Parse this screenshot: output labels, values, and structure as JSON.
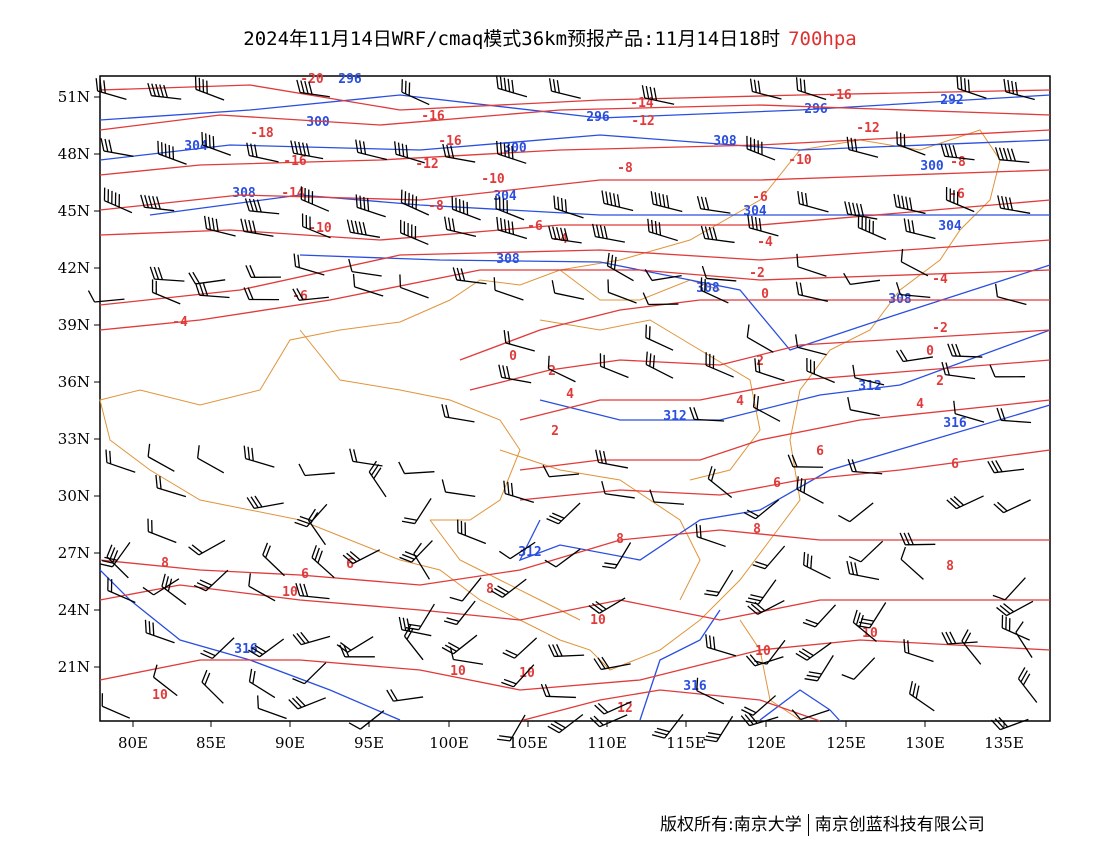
{
  "header": {
    "title": "2024年11月14日WRF/cmaq模式36km预报产品:11月14日18时",
    "level": "700hpa"
  },
  "axes": {
    "x_ticks": [
      "80E",
      "85E",
      "90E",
      "95E",
      "100E",
      "105E",
      "110E",
      "115E",
      "120E",
      "125E",
      "130E",
      "135E"
    ],
    "y_ticks": [
      "51N",
      "48N",
      "45N",
      "42N",
      "39N",
      "36N",
      "33N",
      "30N",
      "27N",
      "24N",
      "21N"
    ]
  },
  "footer": {
    "left": "版权所有:南京大学",
    "right": "南京创蓝科技有限公司"
  },
  "colors": {
    "height_contour": "#2a4fe0",
    "temperature_contour": "#e03a3a",
    "boundary": "#e0943a",
    "wind_barb": "#000000"
  },
  "height_labels": [
    "296",
    "300",
    "304",
    "308",
    "312",
    "316",
    "292",
    "296",
    "300",
    "304",
    "308",
    "312",
    "316",
    "304",
    "308",
    "316"
  ],
  "temp_labels": [
    "-20",
    "-18",
    "-16",
    "-14",
    "-12",
    "-10",
    "-8",
    "-6",
    "-4",
    "-2",
    "0",
    "2",
    "4",
    "6",
    "8",
    "10",
    "12",
    "-16",
    "-12",
    "-10",
    "-8",
    "-6",
    "-4",
    "-2",
    "0",
    "2",
    "4",
    "6",
    "8",
    "10"
  ]
}
